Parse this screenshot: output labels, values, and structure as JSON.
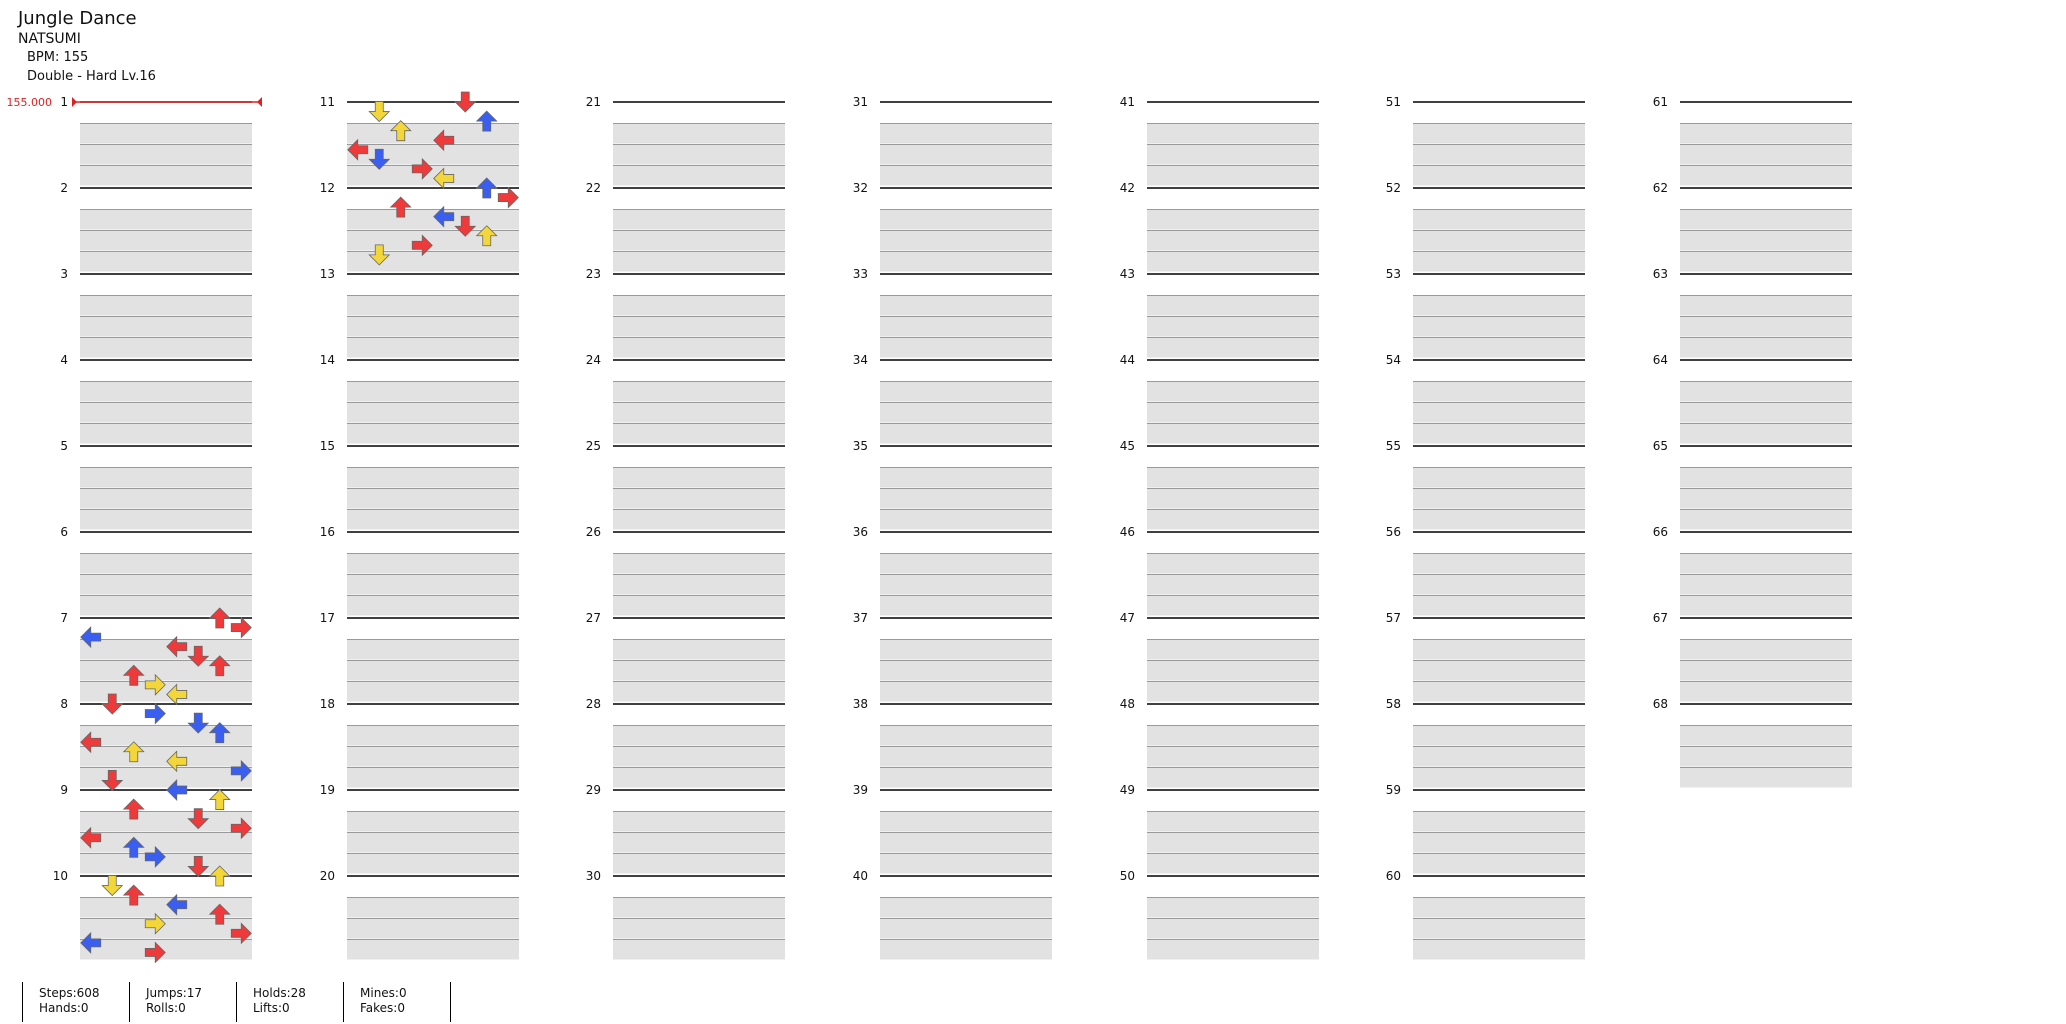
{
  "song": {
    "title": "Jungle Dance",
    "artist": "NATSUMI",
    "bpm_text": "BPM: 155",
    "difficulty_text": "Double - Hard Lv.16"
  },
  "timing": {
    "bpm_marker": "155.000",
    "marker_color": "#e02020"
  },
  "measure_labels": [
    "1",
    "2",
    "3",
    "4",
    "5",
    "6",
    "7",
    "8",
    "9",
    "10",
    "11",
    "12",
    "13",
    "14",
    "15",
    "16",
    "17",
    "18",
    "19",
    "20",
    "21",
    "22",
    "23",
    "24",
    "25",
    "26",
    "27",
    "28",
    "29",
    "30",
    "31",
    "32",
    "33",
    "34",
    "35",
    "36",
    "37",
    "38",
    "39",
    "40",
    "41",
    "42",
    "43",
    "44",
    "45",
    "46",
    "47",
    "48",
    "49",
    "50",
    "51",
    "52",
    "53",
    "54",
    "55",
    "56",
    "57",
    "58",
    "59",
    "60",
    "61",
    "62",
    "63",
    "64",
    "65",
    "66",
    "67",
    "68"
  ],
  "colors": {
    "quarter": "#ee3a3a",
    "eighth": "#3a5ff0",
    "sixteenth": "#f3d73a",
    "hold_body": "#8fdc7a",
    "beat_band": "#e2e2e2"
  },
  "notes": [
    [
      1,
      6,
      0
    ],
    [
      1,
      7,
      0
    ],
    [
      1,
      0,
      1
    ],
    [
      1,
      4,
      0
    ],
    [
      1,
      5,
      0
    ],
    [
      1,
      6,
      0
    ],
    [
      1,
      2,
      0
    ],
    [
      1,
      3,
      2
    ],
    [
      1,
      4,
      2
    ],
    [
      2,
      1,
      0
    ],
    [
      2,
      3,
      1
    ],
    [
      2,
      5,
      1
    ],
    [
      2,
      6,
      1
    ],
    [
      2,
      0,
      0
    ],
    [
      2,
      2,
      2
    ],
    [
      2,
      4,
      2
    ],
    [
      2,
      7,
      1
    ],
    [
      3,
      1,
      0
    ],
    [
      3,
      4,
      1
    ],
    [
      3,
      6,
      2
    ],
    [
      3,
      2,
      0
    ],
    [
      3,
      5,
      0
    ],
    [
      3,
      7,
      0
    ],
    [
      4,
      0,
      0
    ],
    [
      4,
      2,
      1
    ],
    [
      4,
      3,
      1
    ],
    [
      4,
      5,
      0
    ],
    [
      4,
      6,
      2
    ],
    [
      4,
      1,
      2
    ],
    [
      5,
      2,
      0
    ],
    [
      5,
      4,
      1
    ],
    [
      5,
      6,
      0
    ],
    [
      5,
      3,
      2
    ],
    [
      5,
      7,
      0
    ],
    [
      6,
      0,
      1
    ],
    [
      6,
      3,
      0
    ],
    [
      6,
      5,
      0
    ],
    [
      6,
      1,
      2
    ],
    [
      6,
      6,
      1
    ],
    [
      6,
      2,
      2
    ],
    [
      6,
      4,
      0
    ],
    [
      7,
      0,
      0
    ],
    [
      7,
      1,
      1
    ],
    [
      7,
      3,
      0
    ],
    [
      7,
      4,
      2
    ],
    [
      7,
      6,
      1
    ],
    [
      7,
      7,
      0
    ],
    [
      8,
      2,
      0
    ],
    [
      8,
      4,
      1
    ],
    [
      8,
      5,
      0
    ],
    [
      8,
      6,
      2
    ],
    [
      8,
      3,
      0
    ],
    [
      8,
      1,
      2
    ]
  ],
  "stats": {
    "steps": "Steps:608",
    "hands": "Hands:0",
    "jumps": "Jumps:17",
    "rolls": "Rolls:0",
    "holds": "Holds:28",
    "lifts": "Lifts:0",
    "mines": "Mines:0",
    "fakes": "Fakes:0"
  }
}
